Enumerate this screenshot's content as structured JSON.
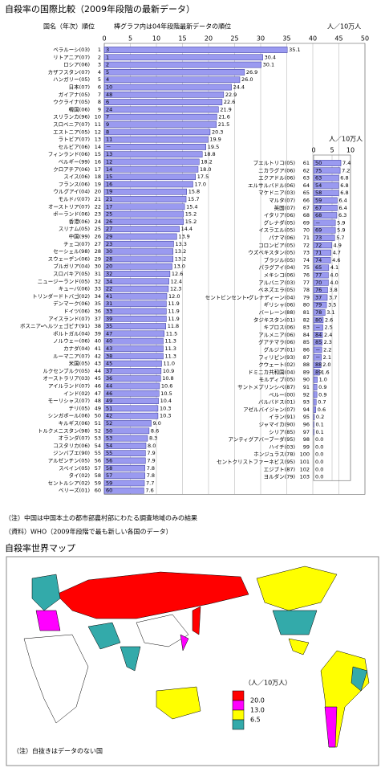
{
  "chart_data": [
    {
      "type": "bar",
      "title": "自殺率の国際比較（2009年段階の最新データ）",
      "header_name": "国名（年次）順位",
      "header_note": "棒グラフ内は04年段階最新データの順位",
      "unit": "人／10万人",
      "color": "#9a9af0",
      "categories": [
        "ベラルーシ(03)",
        "リトアニア(07)",
        "ロシア(06)",
        "カザフスタン(07)",
        "ハンガリー(05)",
        "日本(07)",
        "ガイアナ(05)",
        "ウクライナ(05)",
        "韓国(06)",
        "スリランカ(96)",
        "スロベニア(07)",
        "エストニア(05)",
        "ラトビア(07)",
        "セルビア(06)",
        "フィンランド(06)",
        "ベルギー(99)",
        "クロアチア(06)",
        "スイス(06)",
        "フランス(06)",
        "ウルグアイ(04)",
        "モルドバ(07)",
        "オーストリア(07)",
        "ポーランド(06)",
        "香港(06)",
        "スリナム(05)",
        "中国(99)",
        "チェコ(07)",
        "セーシェル(98)",
        "スウェーデン(06)",
        "ブルガリア(04)",
        "スロバキア(05)",
        "ニュージーランド(05)",
        "キューバ(06)",
        "トリンダードトバゴ(02)",
        "デンマーク(06)",
        "ドイツ(06)",
        "アイスランド(07)",
        "ボスニア・ヘルツェゴビナ(91)",
        "ポルトガル(04)",
        "ノルウェー(06)",
        "カナダ(04)",
        "ルーマニア(07)",
        "米国(05)",
        "ルクセンブルク(05)",
        "オーストラリア(03)",
        "アイルランド(07)",
        "インド(02)",
        "モーリシャス(07)",
        "チリ(05)",
        "シンガポール(06)",
        "キルギス(06)",
        "トルクメニスタン(98)",
        "オランダ(07)",
        "コスタリカ(06)",
        "ジンバブエ(90)",
        "アルゼンチン(05)",
        "スペイン(05)",
        "タイ(02)",
        "セントルシア(02)",
        "ベリーズ(01)"
      ],
      "ranks": [
        1,
        2,
        3,
        4,
        5,
        6,
        7,
        8,
        9,
        10,
        11,
        12,
        13,
        14,
        15,
        16,
        17,
        18,
        19,
        20,
        21,
        22,
        23,
        24,
        25,
        26,
        27,
        28,
        29,
        30,
        31,
        32,
        33,
        34,
        35,
        36,
        37,
        38,
        39,
        40,
        41,
        42,
        43,
        44,
        45,
        46,
        47,
        48,
        49,
        50,
        51,
        52,
        53,
        54,
        55,
        56,
        57,
        58,
        59,
        60
      ],
      "values": [
        35.1,
        30.4,
        30.1,
        26.9,
        26.0,
        24.4,
        22.9,
        22.6,
        21.9,
        21.6,
        21.5,
        20.3,
        19.9,
        19.5,
        18.8,
        18.2,
        18.0,
        17.5,
        17.0,
        15.8,
        15.7,
        15.4,
        15.2,
        15.2,
        14.4,
        13.9,
        13.3,
        13.2,
        13.2,
        13.0,
        12.6,
        12.4,
        12.3,
        12.0,
        11.9,
        11.9,
        11.9,
        11.8,
        11.5,
        11.3,
        11.3,
        11.3,
        11.0,
        10.9,
        10.8,
        10.6,
        10.5,
        10.4,
        10.3,
        10.3,
        9.0,
        8.6,
        8.3,
        8.0,
        7.9,
        7.9,
        7.8,
        7.8,
        7.7,
        7.6
      ],
      "value_labels": [
        "35.1",
        "30.4",
        "30.1",
        "26.9",
        "26.0",
        "24.4",
        "22.9",
        "22.6",
        "21.9",
        "21.6",
        "21.5",
        "20.3",
        "19.9",
        "19.5",
        "18.8",
        "18.2",
        "18.0",
        "17.5",
        "17.0",
        "15.8",
        "15.7",
        "15.4",
        "15.2",
        "15.2",
        "14.4",
        "13.9",
        "13.3",
        "13.2",
        "13.2",
        "13.0",
        "12.6",
        "12.4",
        "12.3",
        "12.0",
        "11.9",
        "11.9",
        "11.9",
        "11.8",
        "11.5",
        "11.3",
        "11.3",
        "11.3",
        "11.0",
        "10.9",
        "10.8",
        "10.6",
        "10.5",
        "10.4",
        "10.3",
        "10.3",
        "9.0",
        "8.6",
        "8.3",
        "8.0",
        "7.9",
        "7.9",
        "7.8",
        "7.8",
        "7.7",
        "7.6"
      ],
      "rank_2004": [
        3,
        1,
        2,
        5,
        4,
        10,
        48,
        6,
        24,
        7,
        9,
        8,
        11,
        "－",
        13,
        12,
        14,
        15,
        16,
        19,
        21,
        17,
        25,
        26,
        27,
        29,
        23,
        30,
        28,
        20,
        32,
        34,
        22,
        41,
        31,
        33,
        39,
        35,
        47,
        40,
        43,
        38,
        45,
        37,
        36,
        44,
        46,
        49,
        51,
        42,
        52,
        50,
        53,
        54,
        55,
        56,
        58,
        57,
        59,
        60
      ],
      "xlim": [
        0,
        50
      ],
      "xticks": [
        0,
        5,
        10,
        15,
        20,
        25,
        30,
        35,
        40,
        45,
        50
      ],
      "grid": true
    },
    {
      "type": "bar",
      "unit": "人／10万人",
      "color": "#9a9af0",
      "categories": [
        "プエルトリコ(05)",
        "ニカラグア(06)",
        "エクアドル(06)",
        "エルサルバドル(06)",
        "マケドニア(03)",
        "マルタ(07)",
        "英国(07)",
        "イタリア(06)",
        "グレナダ(05)",
        "イスラエル(05)",
        "パナマ(06)",
        "コロンビア(05)",
        "ウズベキスタン(05)",
        "ブラジル(05)",
        "パラグアイ(04)",
        "メキシコ(06)",
        "アルバニア(03)",
        "ベネズエラ(05)",
        "セントビンセント・グレナディーン(04)",
        "ギリシャ(06)",
        "バーレーン(88)",
        "タジキスタン(01)",
        "キプロス(06)",
        "アルメニア(06)",
        "グアテマラ(06)",
        "グルジア(01)",
        "フィリピン(93)",
        "クウェート(02)",
        "ドミニカ共和国(04)",
        "モルディブ(05)",
        "サントメプリンシペ(87)",
        "ペルー(00)",
        "バルバドス(01)",
        "アゼルバイジャン(07)",
        "イラン(91)",
        "ジャマイカ(90)",
        "シリア(85)",
        "アンティグアバーブーダ(95)",
        "ハイチ(03)",
        "ホンジュラス(78)",
        "セントクリストファーネビス(95)",
        "エジプト(87)",
        "ヨルダン(79)"
      ],
      "ranks": [
        61,
        62,
        63,
        64,
        65,
        66,
        67,
        68,
        69,
        70,
        71,
        72,
        73,
        74,
        75,
        76,
        77,
        78,
        79,
        80,
        81,
        82,
        83,
        84,
        85,
        86,
        87,
        88,
        89,
        90,
        91,
        92,
        93,
        94,
        95,
        96,
        97,
        98,
        99,
        100,
        101,
        102,
        103
      ],
      "values": [
        7.4,
        7.2,
        6.8,
        6.8,
        6.8,
        6.4,
        6.4,
        6.3,
        5.9,
        5.9,
        5.7,
        4.9,
        4.7,
        4.6,
        4.1,
        4.0,
        4.0,
        3.8,
        3.7,
        3.5,
        3.1,
        2.6,
        2.5,
        2.4,
        2.3,
        2.2,
        2.1,
        2.0,
        1.6,
        1.0,
        0.9,
        0.9,
        0.7,
        0.6,
        0.2,
        0.1,
        0.1,
        0.0,
        0.0,
        0.0,
        0.0,
        0.0,
        0.0
      ],
      "value_labels": [
        "7.4",
        "7.2",
        "6.8",
        "6.8",
        "6.8",
        "6.4",
        "6.4",
        "6.3",
        "5.9",
        "5.9",
        "5.7",
        "4.9",
        "4.7",
        "4.6",
        "4.1",
        "4.0",
        "4.0",
        "3.8",
        "3.7",
        "3.5",
        "3.1",
        "2.6",
        "2.5",
        "2.4",
        "2.3",
        "2.2",
        "2.1",
        "2.0",
        "1.6",
        "1.0",
        "0.9",
        "0.9",
        "0.7",
        "0.6",
        "0.2",
        "0.1",
        "0.1",
        "0.0",
        "0.0",
        "0.0",
        "0.0",
        "0.0",
        "0.0"
      ],
      "rank_2004": [
        50,
        75,
        63,
        54,
        58,
        59,
        67,
        68,
        "－",
        69,
        73,
        72,
        71,
        74,
        65,
        77,
        70,
        76,
        37,
        79,
        78,
        80,
        "－",
        84,
        85,
        "－",
        "－",
        88,
        89,
        null,
        null,
        null,
        null,
        null,
        null,
        null,
        null,
        null,
        null,
        null,
        null,
        null,
        null
      ],
      "xlim": [
        0,
        10
      ],
      "xticks": [
        0,
        5,
        10
      ],
      "grid": true
    }
  ],
  "notes": [
    "（注）中国は中国本土の都市部農村部にわたる調査地域のみの結果",
    "（資料）WHO（2009年段階で最も新しい各国のデータ）"
  ],
  "map": {
    "title": "自殺率世界マップ",
    "legend_unit": "（人／10万人）",
    "legend": [
      {
        "label": "20.0",
        "color": "#ff0000"
      },
      {
        "label": "13.0",
        "color": "#ff00ff"
      },
      {
        "label": "6.5",
        "color": "#ffff00"
      },
      {
        "color": "#33aaaa"
      }
    ],
    "note": "（注）白抜きはデータのない国"
  }
}
